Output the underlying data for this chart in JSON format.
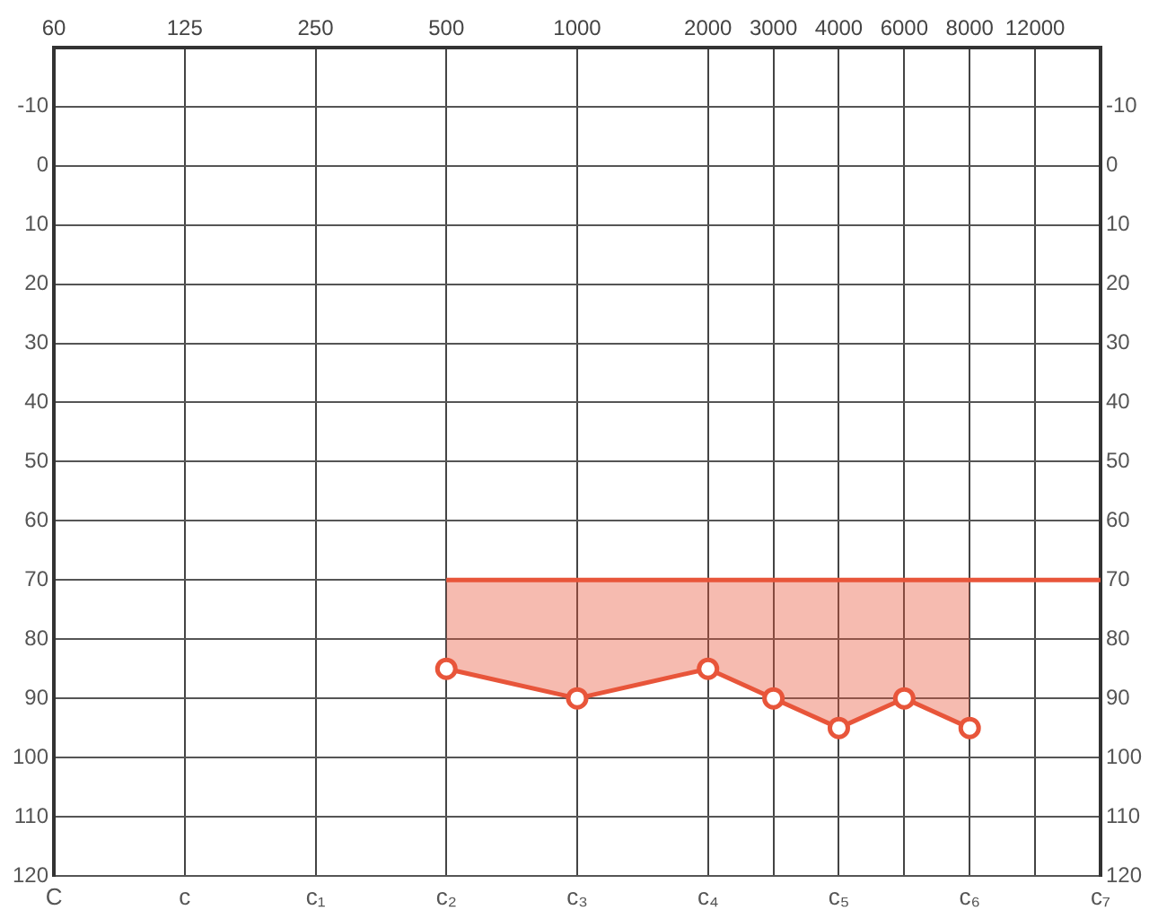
{
  "chart_data": {
    "type": "line",
    "categories": [
      "60",
      null,
      "125",
      null,
      "250",
      null,
      "500",
      null,
      "1000",
      null,
      "2000",
      "3000",
      "4000",
      "6000",
      "8000",
      "12000",
      null
    ],
    "annotations": [
      "C",
      "c",
      "c₁",
      "c₂",
      "c₃",
      "c₄",
      "c₅",
      "c₆",
      "c₇"
    ],
    "series": [
      {
        "color": "#e8553a",
        "marker": "none",
        "values": [
          null,
          null,
          null,
          null,
          null,
          null,
          70,
          70,
          70,
          70,
          70,
          70,
          70,
          70,
          70,
          70,
          70
        ]
      },
      {
        "color": "#e8553a",
        "marker": "circle",
        "values": [
          null,
          null,
          null,
          null,
          null,
          null,
          85,
          null,
          90,
          null,
          85,
          90,
          95,
          90,
          95,
          null,
          null
        ],
        "lower": [
          null,
          null,
          null,
          null,
          null,
          null,
          85,
          null,
          90,
          null,
          85,
          90,
          95,
          90,
          95,
          null,
          null
        ],
        "upper": [
          null,
          null,
          null,
          null,
          null,
          null,
          70,
          null,
          70,
          null,
          70,
          70,
          70,
          70,
          70,
          null,
          null
        ]
      }
    ],
    "ylim": [
      120,
      -20
    ],
    "yticks": [
      -10,
      0,
      10,
      20,
      30,
      40,
      50,
      60,
      70,
      80,
      90,
      100,
      110,
      120
    ],
    "y2lim": [
      120,
      -20
    ],
    "y2ticks": [
      -10,
      0,
      10,
      20,
      30,
      40,
      50,
      60,
      70,
      80,
      90,
      100,
      110,
      120
    ],
    "grid": true,
    "legend": false
  }
}
